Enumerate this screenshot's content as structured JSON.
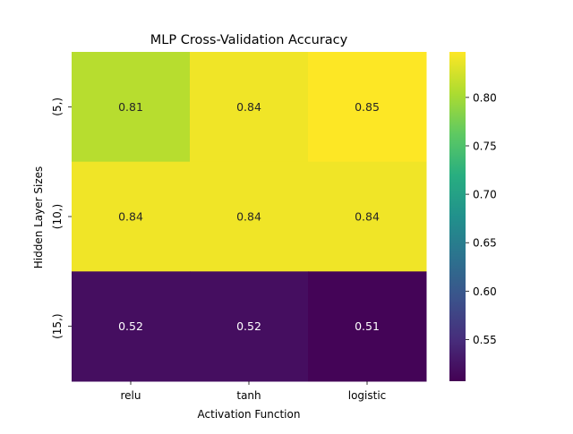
{
  "chart_data": {
    "type": "heatmap",
    "title": "MLP Cross-Validation Accuracy",
    "xlabel": "Activation Function",
    "ylabel": "Hidden Layer Sizes",
    "x_categories": [
      "relu",
      "tanh",
      "logistic"
    ],
    "y_categories": [
      "(5,)",
      "(10,)",
      "(15,)"
    ],
    "values": [
      [
        0.81,
        0.84,
        0.85
      ],
      [
        0.84,
        0.84,
        0.84
      ],
      [
        0.52,
        0.52,
        0.51
      ]
    ],
    "annotations": [
      [
        "0.81",
        "0.84",
        "0.85"
      ],
      [
        "0.84",
        "0.84",
        "0.84"
      ],
      [
        "0.52",
        "0.52",
        "0.51"
      ]
    ],
    "colormap": "viridis",
    "color_range": [
      0.507,
      0.847
    ],
    "colorbar_ticks": [
      0.55,
      0.6,
      0.65,
      0.7,
      0.75,
      0.8
    ],
    "colorbar_tick_labels": [
      "0.55",
      "0.60",
      "0.65",
      "0.70",
      "0.75",
      "0.80"
    ]
  }
}
